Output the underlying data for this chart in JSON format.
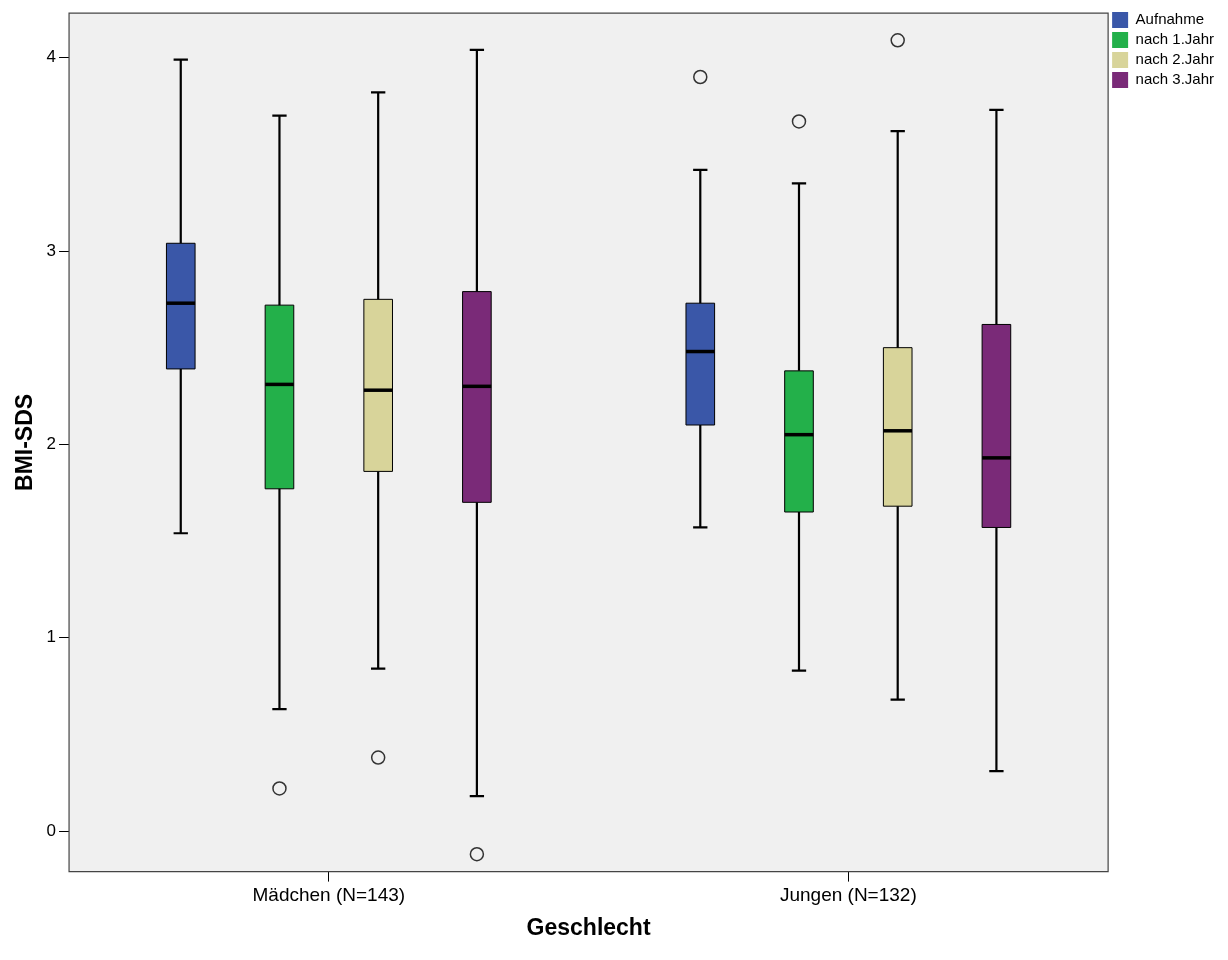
{
  "chart_data": {
    "type": "box",
    "xlabel": "Geschlecht",
    "ylabel": "BMI-SDS",
    "categories": [
      "Mädchen (N=143)",
      "Jungen (N=132)"
    ],
    "ylim": [
      -0.21,
      4.23
    ],
    "yticks": [
      0,
      1,
      2,
      3,
      4
    ],
    "legend": "top right",
    "series": [
      {
        "name": "Aufnahme",
        "color": "#3a57a8",
        "boxes": [
          {
            "low": 1.54,
            "q1": 2.39,
            "median": 2.73,
            "q3": 3.04,
            "high": 3.99
          },
          {
            "low": 1.57,
            "q1": 2.1,
            "median": 2.48,
            "q3": 2.73,
            "high": 3.42,
            "outliers": [
              3.9
            ]
          }
        ]
      },
      {
        "name": "nach 1.Jahr",
        "color": "#23b04a",
        "boxes": [
          {
            "low": 0.63,
            "q1": 1.77,
            "median": 2.31,
            "q3": 2.72,
            "high": 3.7,
            "outliers": [
              0.22
            ]
          },
          {
            "low": 0.83,
            "q1": 1.65,
            "median": 2.05,
            "q3": 2.38,
            "high": 3.35,
            "outliers": [
              3.67
            ]
          }
        ]
      },
      {
        "name": "nach 2.Jahr",
        "color": "#d8d49a",
        "boxes": [
          {
            "low": 0.84,
            "q1": 1.86,
            "median": 2.28,
            "q3": 2.75,
            "high": 3.82,
            "outliers": [
              0.38
            ]
          },
          {
            "low": 0.68,
            "q1": 1.68,
            "median": 2.07,
            "q3": 2.5,
            "high": 3.62,
            "outliers": [
              4.09
            ]
          }
        ]
      },
      {
        "name": "nach 3.Jahr",
        "color": "#7a2a78",
        "boxes": [
          {
            "low": 0.18,
            "q1": 1.7,
            "median": 2.3,
            "q3": 2.79,
            "high": 4.04,
            "outliers": [
              -0.12
            ]
          },
          {
            "low": 0.31,
            "q1": 1.57,
            "median": 1.93,
            "q3": 2.62,
            "high": 3.73
          }
        ]
      }
    ]
  }
}
